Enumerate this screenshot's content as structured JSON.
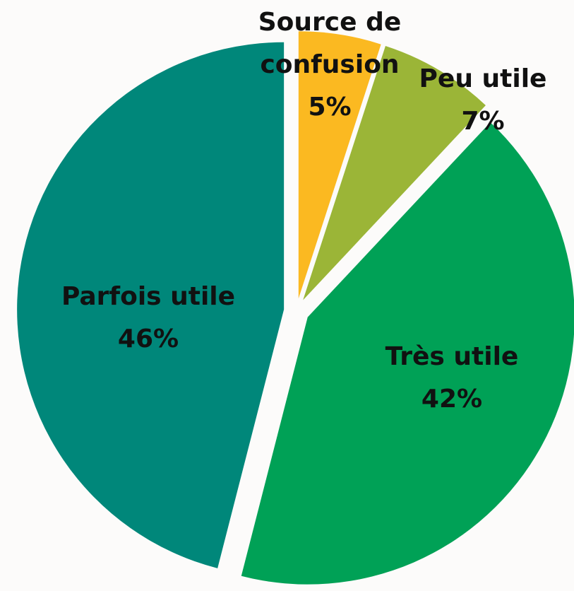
{
  "chart_data": {
    "type": "pie",
    "categories": [
      "Source de confusion",
      "Peu utile",
      "Très utile",
      "Parfois utile"
    ],
    "values": [
      5,
      7,
      42,
      46
    ],
    "value_labels": [
      "5%",
      "7%",
      "42%",
      "46%"
    ],
    "colors": [
      "#fbb921",
      "#9bb537",
      "#00a156",
      "#00877a"
    ]
  }
}
